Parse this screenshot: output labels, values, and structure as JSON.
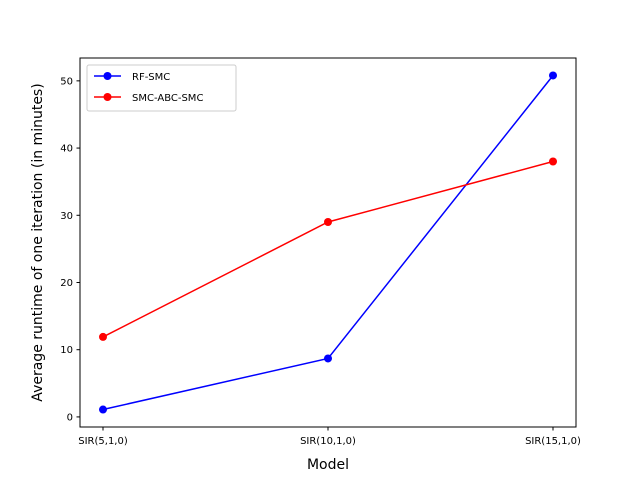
{
  "chart_data": {
    "type": "line",
    "title": "",
    "xlabel": "Model",
    "ylabel": "Average runtime of one iteration (in minutes)",
    "categories": [
      "SIR(5,1,0)",
      "SIR(10,1,0)",
      "SIR(15,1,0)"
    ],
    "yticks": [
      0,
      10,
      20,
      30,
      40,
      50
    ],
    "ylim": [
      -1.5,
      53.4
    ],
    "grid": false,
    "legend_position": "top-left",
    "series": [
      {
        "name": "RF-SMC",
        "color": "#0000ff",
        "marker": "circle",
        "values": [
          1.1,
          8.7,
          50.8
        ]
      },
      {
        "name": "SMC-ABC-SMC",
        "color": "#ff0000",
        "marker": "circle",
        "values": [
          11.9,
          29.0,
          38.0
        ]
      }
    ]
  }
}
